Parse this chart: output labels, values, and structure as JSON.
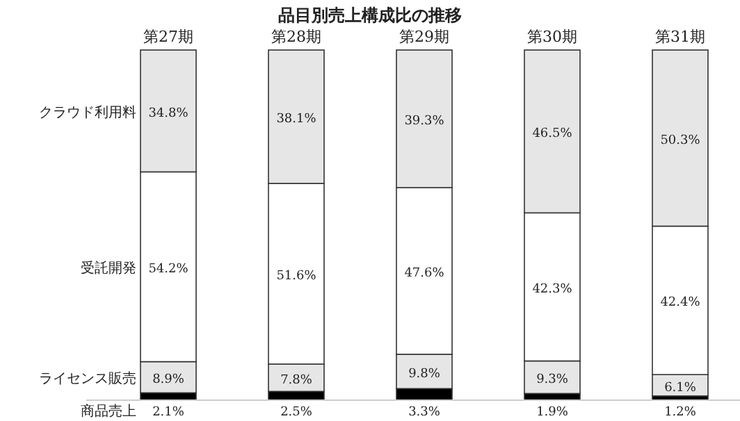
{
  "chart_data": {
    "type": "bar",
    "title": "品目別売上構成比の推移",
    "stacked": true,
    "ylim": [
      0,
      100
    ],
    "legend": "left",
    "categories": [
      "第27期",
      "第28期",
      "第29期",
      "第30期",
      "第31期"
    ],
    "series": [
      {
        "name": "商品売上",
        "color": "#000000",
        "values": [
          2.1,
          2.5,
          3.3,
          1.9,
          1.2
        ],
        "value_labels": [
          "2.1%",
          "2.5%",
          "3.3%",
          "1.9%",
          "1.2%"
        ]
      },
      {
        "name": "ライセンス販売",
        "color": "#e6e6e6",
        "values": [
          8.9,
          7.8,
          9.8,
          9.3,
          6.1
        ],
        "value_labels": [
          "8.9%",
          "7.8%",
          "9.8%",
          "9.3%",
          "6.1%"
        ]
      },
      {
        "name": "受託開発",
        "color": "#ffffff",
        "values": [
          54.2,
          51.6,
          47.6,
          42.3,
          42.4
        ],
        "value_labels": [
          "54.2%",
          "51.6%",
          "47.6%",
          "42.3%",
          "42.4%"
        ]
      },
      {
        "name": "クラウド利用料",
        "color": "#e6e6e6",
        "values": [
          34.8,
          38.1,
          39.3,
          46.5,
          50.3
        ],
        "value_labels": [
          "34.8%",
          "38.1%",
          "39.3%",
          "46.5%",
          "50.3%"
        ]
      }
    ]
  }
}
